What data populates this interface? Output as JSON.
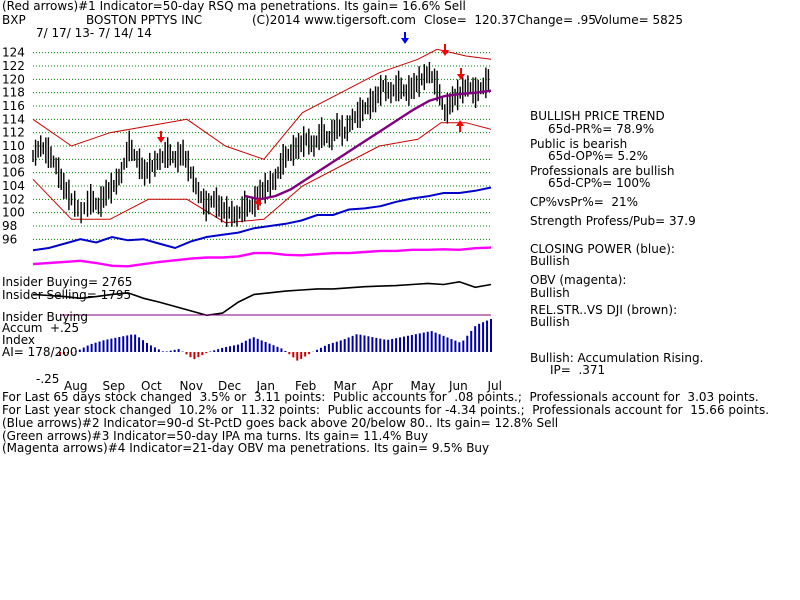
{
  "header": {
    "line1": "(Red arrows)#1 Indicator=50-day RSQ ma penetrations. Its gain= 16.6% Sell",
    "ticker": "BXP",
    "company": "BOSTON PPTYS INC",
    "copyright": "(C)2014 www.tigersoft.com",
    "close": "Close=  120.37",
    "change": "Change= .95",
    "volume": "Volume= 5825",
    "date_range": "7/ 17/ 13- 7/ 14/ 14"
  },
  "left_labels": {
    "insider_buying_top": "Insider Buying= 2765",
    "insider_selling": "Insider Selling= 1795",
    "insider_buying_mid": "Insider Buying",
    "accum": "Accum",
    "accum_plus": "+.25",
    "index": "Index",
    "ai": "AI= 178/200",
    "accum_minus": "-.25"
  },
  "right_panel": {
    "trend_title": "BULLISH PRICE TREND",
    "pr": "65d-PR%= 78.9%",
    "public": "Public is bearish",
    "op": "65d-OP%= 5.2%",
    "professionals": "Professionals are bullish",
    "cp": "65d-CP%= 100%",
    "cpvspr": "CP%vsPr%=  21%",
    "strength": "Strength Profess/Pub= 37.9",
    "closing_power": "CLOSING POWER (blue):",
    "closing_power_val": "Bullish",
    "obv": "OBV (magenta):",
    "obv_val": "Bullish",
    "relstr": "REL.STR..VS DJI (brown):",
    "relstr_val": "Bullish",
    "accum_rising": "Bullish: Accumulation Rising.",
    "ip": "IP=  .371"
  },
  "footer": {
    "l1": "For Last 65 days stock changed  3.5% or  3.11 points:  Public accounts for  .08 points.;  Professionals account for  3.03 points.",
    "l2": "For Last year stock changed  10.2% or  11.32 points:  Public accounts for -4.34 points.;  Professionals account for  15.66 points.",
    "l3": "(Blue arrows)#2 Indicator=90-d St-PctD goes back above 20/below 80.. Its gain= 12.8% Sell",
    "l4": "(Green arrows)#3 Indicator=50-day IPA ma turns. Its gain= 11.4% Buy",
    "l5": "(Magenta arrows)#4 Indicator=21-day OBV ma penetrations. Its gain= 9.5% Buy"
  },
  "colors": {
    "price": "#000000",
    "band": "#cc0000",
    "ma50": "#800080",
    "closing_power": "#0000cc",
    "obv": "#ff00ff",
    "relstr": "#000000",
    "accum_bars": "#0000aa",
    "accum_neg": "#cc0000",
    "grid": "#008000",
    "sell_arrow": "#ff0000",
    "blue_arrow": "#0000ff"
  },
  "chart_data": {
    "type": "line",
    "y_ticks": [
      124,
      122,
      120,
      118,
      116,
      114,
      112,
      110,
      108,
      106,
      104,
      102,
      100,
      98,
      96
    ],
    "ylim": [
      95,
      125
    ],
    "x_months": [
      "Aug",
      "Sep",
      "Oct",
      "Nov",
      "Dec",
      "Jan",
      "Feb",
      "Mar",
      "Apr",
      "May",
      "Jun",
      "Jul"
    ],
    "grid": true,
    "price_series": [
      {
        "x": 0,
        "y": 108.5
      },
      {
        "x": 4,
        "y": 110
      },
      {
        "x": 8,
        "y": 109
      },
      {
        "x": 12,
        "y": 107
      },
      {
        "x": 16,
        "y": 104
      },
      {
        "x": 20,
        "y": 102
      },
      {
        "x": 25,
        "y": 100
      },
      {
        "x": 30,
        "y": 102
      },
      {
        "x": 34,
        "y": 101
      },
      {
        "x": 38,
        "y": 103
      },
      {
        "x": 42,
        "y": 104
      },
      {
        "x": 46,
        "y": 106
      },
      {
        "x": 50,
        "y": 110
      },
      {
        "x": 54,
        "y": 108
      },
      {
        "x": 58,
        "y": 106
      },
      {
        "x": 62,
        "y": 107
      },
      {
        "x": 66,
        "y": 108
      },
      {
        "x": 70,
        "y": 109
      },
      {
        "x": 74,
        "y": 108
      },
      {
        "x": 78,
        "y": 109
      },
      {
        "x": 82,
        "y": 106
      },
      {
        "x": 86,
        "y": 103
      },
      {
        "x": 90,
        "y": 101
      },
      {
        "x": 94,
        "y": 102
      },
      {
        "x": 98,
        "y": 100.5
      },
      {
        "x": 102,
        "y": 100
      },
      {
        "x": 106,
        "y": 99.5
      },
      {
        "x": 110,
        "y": 101
      },
      {
        "x": 114,
        "y": 101
      },
      {
        "x": 118,
        "y": 103
      },
      {
        "x": 122,
        "y": 104
      },
      {
        "x": 126,
        "y": 105
      },
      {
        "x": 130,
        "y": 108
      },
      {
        "x": 134,
        "y": 109
      },
      {
        "x": 138,
        "y": 110
      },
      {
        "x": 142,
        "y": 111
      },
      {
        "x": 146,
        "y": 110
      },
      {
        "x": 150,
        "y": 112
      },
      {
        "x": 154,
        "y": 111
      },
      {
        "x": 158,
        "y": 113
      },
      {
        "x": 162,
        "y": 112
      },
      {
        "x": 166,
        "y": 114
      },
      {
        "x": 170,
        "y": 115
      },
      {
        "x": 174,
        "y": 116
      },
      {
        "x": 178,
        "y": 117
      },
      {
        "x": 182,
        "y": 119
      },
      {
        "x": 186,
        "y": 118
      },
      {
        "x": 190,
        "y": 119
      },
      {
        "x": 194,
        "y": 118
      },
      {
        "x": 198,
        "y": 119
      },
      {
        "x": 202,
        "y": 120
      },
      {
        "x": 206,
        "y": 121
      },
      {
        "x": 210,
        "y": 119
      },
      {
        "x": 214,
        "y": 115
      },
      {
        "x": 218,
        "y": 117
      },
      {
        "x": 222,
        "y": 118
      },
      {
        "x": 226,
        "y": 119
      },
      {
        "x": 230,
        "y": 118
      },
      {
        "x": 234,
        "y": 119
      },
      {
        "x": 238,
        "y": 120.4
      }
    ],
    "ma50_series": [
      {
        "x": 110,
        "y": 102.5
      },
      {
        "x": 118,
        "y": 102
      },
      {
        "x": 126,
        "y": 102.5
      },
      {
        "x": 134,
        "y": 103.5
      },
      {
        "x": 142,
        "y": 105
      },
      {
        "x": 150,
        "y": 106.5
      },
      {
        "x": 158,
        "y": 108
      },
      {
        "x": 166,
        "y": 109.5
      },
      {
        "x": 174,
        "y": 111
      },
      {
        "x": 182,
        "y": 112.5
      },
      {
        "x": 190,
        "y": 114
      },
      {
        "x": 198,
        "y": 115.5
      },
      {
        "x": 206,
        "y": 116.8
      },
      {
        "x": 214,
        "y": 117.5
      },
      {
        "x": 222,
        "y": 117.8
      },
      {
        "x": 230,
        "y": 118
      },
      {
        "x": 238,
        "y": 118.3
      }
    ],
    "upper_band": [
      {
        "x": 0,
        "y": 114
      },
      {
        "x": 20,
        "y": 110
      },
      {
        "x": 40,
        "y": 112
      },
      {
        "x": 60,
        "y": 113
      },
      {
        "x": 80,
        "y": 114
      },
      {
        "x": 100,
        "y": 110
      },
      {
        "x": 120,
        "y": 108
      },
      {
        "x": 140,
        "y": 115
      },
      {
        "x": 160,
        "y": 118
      },
      {
        "x": 180,
        "y": 121
      },
      {
        "x": 200,
        "y": 123
      },
      {
        "x": 210,
        "y": 124.5
      },
      {
        "x": 225,
        "y": 123.5
      },
      {
        "x": 238,
        "y": 123
      }
    ],
    "lower_band": [
      {
        "x": 0,
        "y": 105
      },
      {
        "x": 20,
        "y": 99
      },
      {
        "x": 40,
        "y": 99
      },
      {
        "x": 60,
        "y": 102
      },
      {
        "x": 80,
        "y": 102
      },
      {
        "x": 100,
        "y": 98.5
      },
      {
        "x": 120,
        "y": 99
      },
      {
        "x": 140,
        "y": 104
      },
      {
        "x": 160,
        "y": 107
      },
      {
        "x": 180,
        "y": 110
      },
      {
        "x": 200,
        "y": 111
      },
      {
        "x": 212,
        "y": 113.5
      },
      {
        "x": 225,
        "y": 113.5
      },
      {
        "x": 238,
        "y": 112.5
      }
    ],
    "closing_power": [
      0.82,
      0.8,
      0.76,
      0.72,
      0.75,
      0.7,
      0.73,
      0.72,
      0.76,
      0.8,
      0.74,
      0.7,
      0.68,
      0.66,
      0.62,
      0.6,
      0.58,
      0.55,
      0.5,
      0.5,
      0.45,
      0.44,
      0.42,
      0.38,
      0.35,
      0.33,
      0.3,
      0.3,
      0.28,
      0.25
    ],
    "obv": [
      0.62,
      0.6,
      0.58,
      0.56,
      0.6,
      0.65,
      0.66,
      0.62,
      0.58,
      0.55,
      0.52,
      0.5,
      0.5,
      0.48,
      0.42,
      0.42,
      0.45,
      0.46,
      0.44,
      0.42,
      0.42,
      0.4,
      0.38,
      0.38,
      0.36,
      0.36,
      0.35,
      0.36,
      0.33,
      0.32
    ],
    "relstr": [
      0.48,
      0.5,
      0.52,
      0.55,
      0.52,
      0.48,
      0.45,
      0.55,
      0.62,
      0.7,
      0.78,
      0.86,
      0.82,
      0.62,
      0.48,
      0.45,
      0.42,
      0.4,
      0.38,
      0.38,
      0.36,
      0.34,
      0.33,
      0.32,
      0.3,
      0.28,
      0.3,
      0.25,
      0.35,
      0.3
    ],
    "accum": [
      -0.02,
      0.0,
      0.05,
      0.08,
      0.1,
      0.12,
      0.05,
      0.0,
      0.02,
      -0.05,
      0.0,
      0.03,
      0.05,
      0.1,
      0.06,
      0.02,
      -0.06,
      0.0,
      0.05,
      0.08,
      0.12,
      0.1,
      0.08,
      0.1,
      0.12,
      0.14,
      0.1,
      0.06,
      0.18,
      0.22
    ]
  }
}
